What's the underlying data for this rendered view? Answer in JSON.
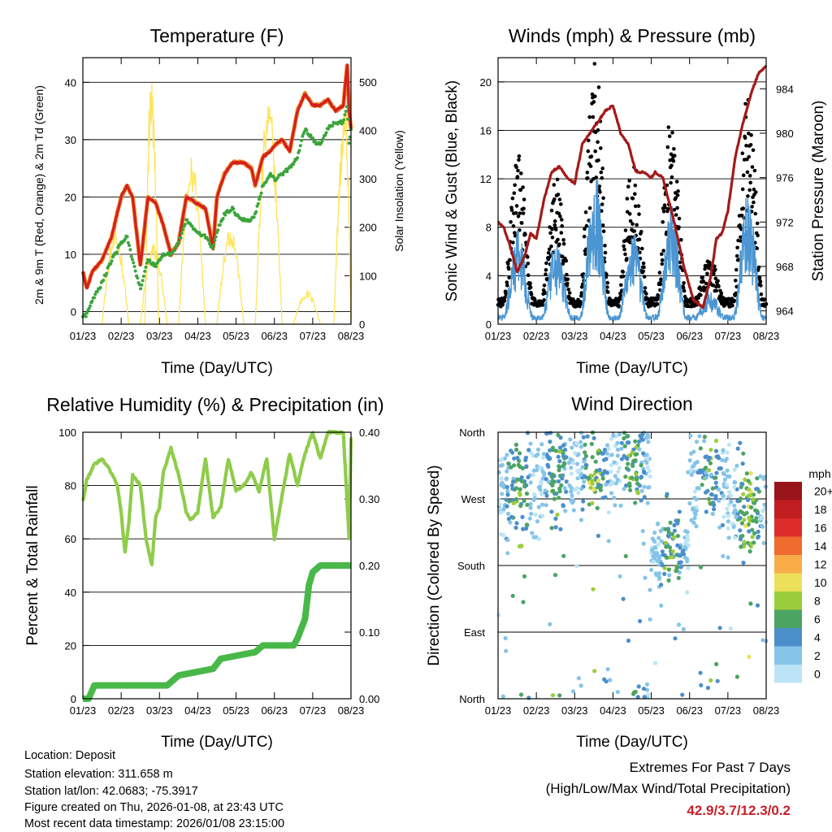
{
  "date_ticks": [
    "01/23",
    "02/23",
    "03/23",
    "04/23",
    "05/23",
    "06/23",
    "07/23",
    "08/23"
  ],
  "colors": {
    "temp_2m": "#d41f1f",
    "temp_9m": "#f08a2a",
    "dewpoint": "#3aa53a",
    "solar": "#ffe45c",
    "wind_sonic": "#4b96d2",
    "wind_gust": "#000000",
    "pressure": "#a31a1a",
    "humidity": "#8fcc4a",
    "precip": "#48b848",
    "extremes_text": "#c8202a"
  },
  "charts": [
    {
      "id": "temperature",
      "type": "line",
      "title": "Temperature (F)",
      "xlabel": "Time (Day/UTC)",
      "ylabel_left": "2m & 9m T (Red, Orange) & 2m Td (Green)",
      "ylabel_right": "Solar Insolation (Yellow)",
      "ylim_left": [
        -2.2,
        44.3
      ],
      "yticks_left": [
        0,
        10,
        20,
        30,
        40
      ],
      "ylim_right": [
        0,
        550
      ],
      "yticks_right": [
        0,
        100,
        200,
        300,
        400,
        500
      ],
      "x": [
        0,
        0.1,
        0.25,
        0.5,
        0.75,
        1.0,
        1.15,
        1.3,
        1.5,
        1.7,
        1.9,
        2.1,
        2.3,
        2.5,
        2.7,
        2.95,
        3.2,
        3.4,
        3.5,
        3.7,
        3.9,
        4.0,
        4.2,
        4.4,
        4.5,
        4.7,
        4.9,
        5.0,
        5.2,
        5.4,
        5.6,
        5.8,
        6.0,
        6.2,
        6.4,
        6.6,
        6.8,
        6.9,
        6.95,
        7.0
      ],
      "series": [
        {
          "name": "2m T",
          "values": [
            7,
            4,
            7,
            9,
            13,
            20,
            22,
            20,
            8,
            20,
            19,
            15,
            10,
            12,
            20,
            19,
            18,
            11,
            20,
            24,
            26,
            26,
            26,
            25,
            22,
            27,
            28,
            29,
            30,
            28,
            35,
            38,
            36,
            36,
            37,
            35,
            36,
            43,
            35,
            32
          ]
        },
        {
          "name": "2m Td",
          "values": [
            -1,
            -0.5,
            2,
            5,
            9,
            12,
            13,
            9,
            4,
            9,
            8,
            10,
            10,
            12,
            16,
            14,
            13,
            11,
            14,
            17,
            18,
            17,
            16,
            16,
            17,
            22,
            24,
            23,
            24,
            25,
            27,
            32,
            30,
            29,
            32,
            33,
            33,
            36,
            29,
            32
          ]
        },
        {
          "name": "Solar",
          "axis": "right",
          "days": [
            {
              "start": 0.5,
              "peak": 0.85,
              "end": 1.2,
              "max": 195
            },
            {
              "start": 1.5,
              "peak": 1.85,
              "end": 2.2,
              "max": 170
            },
            {
              "start": 1.62,
              "peak": 1.78,
              "end": 1.98,
              "max": 520
            },
            {
              "start": 2.5,
              "peak": 2.85,
              "end": 3.2,
              "max": 350
            },
            {
              "start": 3.5,
              "peak": 3.85,
              "end": 4.2,
              "max": 210
            },
            {
              "start": 4.5,
              "peak": 4.85,
              "end": 5.2,
              "max": 470
            },
            {
              "start": 5.5,
              "peak": 5.85,
              "end": 6.2,
              "max": 70
            },
            {
              "start": 6.55,
              "peak": 6.85,
              "end": 7.0,
              "max": 460
            }
          ]
        }
      ]
    },
    {
      "id": "winds",
      "type": "scatter",
      "title": "Winds (mph) & Pressure (mb)",
      "xlabel": "Time (Day/UTC)",
      "ylabel_left": "Sonic Wind & Gust (Blue, Black)",
      "ylabel_right": "Station Pressure (Maroon)",
      "ylim_left": [
        0,
        22
      ],
      "yticks_left": [
        0,
        4,
        8,
        12,
        16,
        20
      ],
      "ylim_right": [
        962.8,
        986.8
      ],
      "yticks_right": [
        964,
        968,
        972,
        976,
        980,
        984
      ],
      "daily_peak_wind": [
        7,
        6,
        12,
        7,
        9,
        2,
        10,
        6
      ],
      "pressure_x": [
        0,
        0.15,
        0.3,
        0.5,
        0.7,
        0.85,
        1.0,
        1.2,
        1.4,
        1.6,
        1.8,
        2.0,
        2.2,
        2.5,
        2.8,
        3.0,
        3.2,
        3.4,
        3.6,
        3.8,
        4.0,
        4.1,
        4.3,
        4.6,
        4.85,
        5.1,
        5.35,
        5.55,
        5.7,
        5.85,
        6.0,
        6.2,
        6.4,
        6.6,
        6.8,
        7.0
      ],
      "pressure_values": [
        972,
        971.5,
        970,
        967.5,
        969,
        971,
        970.5,
        974,
        976.5,
        977,
        976,
        975.5,
        979,
        980.5,
        982,
        982.5,
        980,
        979,
        976.5,
        976.5,
        976,
        976.5,
        976,
        972,
        968,
        965,
        964.3,
        967,
        970.5,
        971,
        973,
        978,
        981,
        983.5,
        985.4,
        986
      ]
    },
    {
      "id": "humidity_precip",
      "type": "line",
      "title": "Relative Humidity (%) & Precipitation (in)",
      "xlabel": "Time (Day/UTC)",
      "ylabel_left": "Percent & Total Rainfall",
      "ylim_left": [
        0,
        100
      ],
      "yticks_left": [
        0,
        20,
        40,
        60,
        80,
        100
      ],
      "ylim_right": [
        0,
        0.4
      ],
      "yticks_right": [
        "0.00",
        "0.10",
        "0.20",
        "0.30",
        "0.40"
      ],
      "x": [
        0,
        0.1,
        0.3,
        0.5,
        0.7,
        0.9,
        1.0,
        1.05,
        1.1,
        1.2,
        1.3,
        1.5,
        1.65,
        1.8,
        1.9,
        2.0,
        2.1,
        2.3,
        2.5,
        2.7,
        2.8,
        3.0,
        3.2,
        3.4,
        3.6,
        3.8,
        4.0,
        4.2,
        4.4,
        4.6,
        4.8,
        5.0,
        5.2,
        5.4,
        5.6,
        5.8,
        6.0,
        6.2,
        6.4,
        6.6,
        6.8,
        6.95,
        7.0
      ],
      "series": [
        {
          "name": "Relative Humidity",
          "values": [
            74,
            82,
            88,
            90,
            86,
            80,
            70,
            62,
            55,
            66,
            84,
            80,
            60,
            50,
            68,
            72,
            85,
            94,
            84,
            70,
            67,
            70,
            90,
            68,
            72,
            90,
            78,
            80,
            85,
            78,
            90,
            60,
            76,
            92,
            80,
            92,
            100,
            90,
            100,
            100,
            100,
            60,
            98
          ]
        },
        {
          "name": "Precipitation",
          "axis": "right",
          "x": [
            0,
            0.15,
            0.3,
            1.5,
            2.2,
            2.4,
            2.5,
            3.4,
            3.6,
            4.5,
            4.7,
            5.5,
            5.6,
            5.8,
            5.9,
            6.0,
            6.2,
            6.4,
            7.0
          ],
          "values": [
            0,
            0,
            0.02,
            0.02,
            0.02,
            0.03,
            0.035,
            0.045,
            0.06,
            0.07,
            0.08,
            0.08,
            0.09,
            0.12,
            0.17,
            0.19,
            0.2,
            0.2,
            0.2
          ]
        }
      ]
    },
    {
      "id": "wind_direction",
      "type": "scatter",
      "title": "Wind Direction",
      "xlabel": "Time (Day/UTC)",
      "ylabel_left": "Direction (Colored By Speed)",
      "ylim_left": [
        0,
        360
      ],
      "direction_labels": [
        "North",
        "East",
        "South",
        "West",
        "North"
      ],
      "direction_values": [
        0,
        90,
        180,
        270,
        360
      ],
      "colorbar": {
        "title": "mph",
        "labels": [
          "0",
          "2",
          "4",
          "6",
          "8",
          "10",
          "12",
          "14",
          "16",
          "18",
          "20+"
        ],
        "colors": [
          "#bde4f6",
          "#86c4e8",
          "#4a8fca",
          "#4ca463",
          "#9acd3a",
          "#ece05a",
          "#f8ad48",
          "#ef6b2e",
          "#dc2d2b",
          "#c01e20",
          "#981418"
        ]
      },
      "daily_center_deg": [
        285,
        300,
        310,
        320,
        200,
        300,
        260,
        300
      ],
      "daily_spread_deg": [
        60,
        60,
        50,
        45,
        40,
        60,
        60,
        80
      ]
    }
  ],
  "footer": {
    "location": "Location: Deposit",
    "elevation": "Station elevation: 311.658 m",
    "latlon": "Station lat/lon: 42.0683; -75.3917",
    "created": "Figure created on Thu, 2026-01-08, at 23:43 UTC",
    "recent": "Most recent data timestamp: 2026/01/08 23:15:00"
  },
  "extremes": {
    "title": "Extremes For Past 7 Days",
    "subtitle": "(High/Low/Max Wind/Total Precipitation)",
    "values": "42.9/3.7/12.3/0.2"
  }
}
